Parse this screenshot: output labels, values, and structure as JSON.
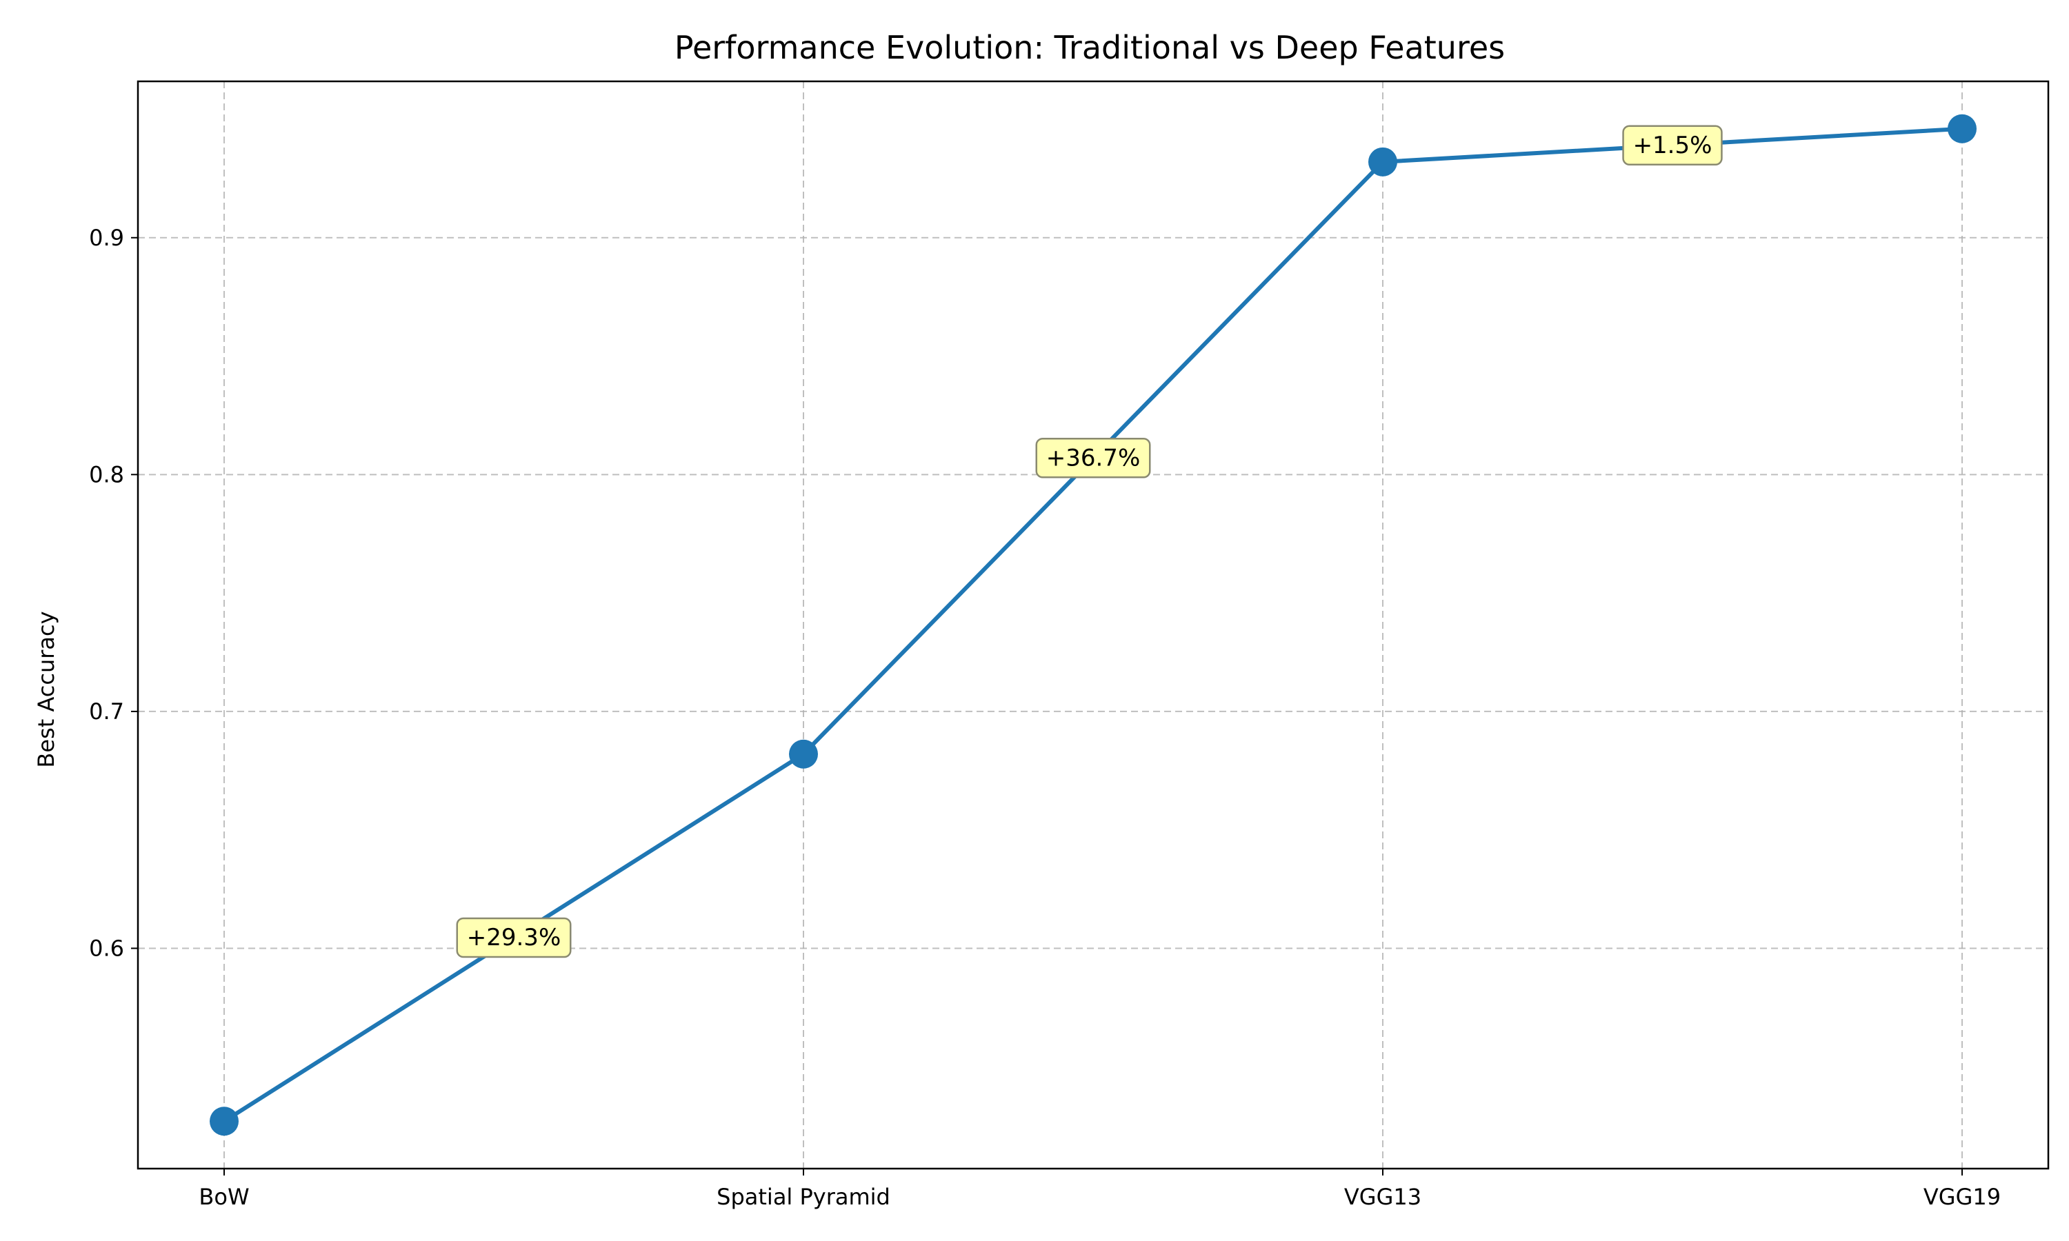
{
  "chart_data": {
    "type": "line",
    "title": "Performance Evolution: Traditional vs Deep Features",
    "xlabel": "",
    "ylabel": "Best Accuracy",
    "categories": [
      "BoW",
      "Spatial Pyramid",
      "VGG13",
      "VGG19"
    ],
    "series": [
      {
        "values": [
          0.527,
          0.682,
          0.932,
          0.946
        ],
        "color": "#1f77b4"
      }
    ],
    "annotations": [
      {
        "text": "+29.3%",
        "between": [
          0,
          1
        ]
      },
      {
        "text": "+36.7%",
        "between": [
          1,
          2
        ]
      },
      {
        "text": "+1.5%",
        "between": [
          2,
          3
        ]
      }
    ],
    "ylim": [
      0.507,
      0.966
    ],
    "yticks": [
      0.6,
      0.7,
      0.8,
      0.9
    ],
    "ytick_labels": [
      "0.6",
      "0.7",
      "0.8",
      "0.9"
    ],
    "grid": true,
    "annotation_box_color": "#ffffb3"
  }
}
